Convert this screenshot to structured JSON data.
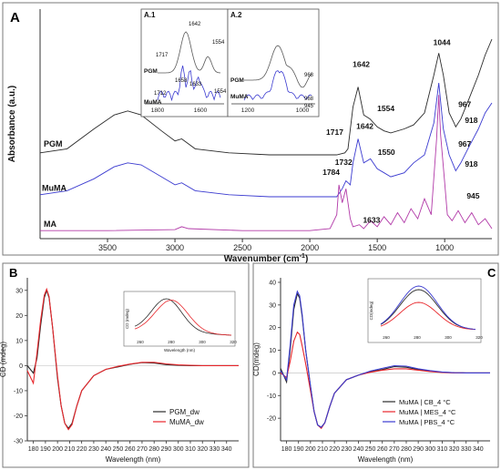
{
  "colors": {
    "black": "#2b2b2b",
    "blue": "#3b3bd0",
    "red": "#e8262b",
    "magenta": "#b23aa8",
    "grey": "#5a5a5a",
    "panel_bg": "#f2f2f2",
    "frame": "#7a7a7a"
  },
  "chart_data": [
    {
      "panel": "A",
      "type": "line",
      "xlabel": "Wavenumber (cm",
      "xlabel_sup": "-1",
      "xlabel_close": ")",
      "ylabel": "Absorbance (a.u.)",
      "xlim": [
        4000,
        650
      ],
      "x_reversed": true,
      "xticks": [
        3500,
        3000,
        2500,
        2000,
        1500,
        1000
      ],
      "series": [
        {
          "name": "PGM",
          "color": "#2b2b2b",
          "x": [
            4000,
            3800,
            3600,
            3450,
            3350,
            3250,
            3100,
            3000,
            2950,
            2850,
            2600,
            2300,
            2000,
            1800,
            1740,
            1717,
            1680,
            1642,
            1600,
            1554,
            1500,
            1450,
            1400,
            1300,
            1230,
            1150,
            1080,
            1044,
            1010,
            967,
            930,
            918,
            880,
            820,
            750,
            700,
            650
          ],
          "y": [
            0.43,
            0.45,
            0.55,
            0.62,
            0.64,
            0.62,
            0.54,
            0.49,
            0.5,
            0.45,
            0.43,
            0.42,
            0.42,
            0.42,
            0.43,
            0.45,
            0.66,
            0.76,
            0.62,
            0.6,
            0.56,
            0.54,
            0.53,
            0.55,
            0.57,
            0.63,
            0.82,
            0.93,
            0.82,
            0.63,
            0.58,
            0.56,
            0.6,
            0.7,
            0.82,
            0.92,
            1.0
          ]
        },
        {
          "name": "MuMA",
          "color": "#3b3bd0",
          "x": [
            4000,
            3800,
            3600,
            3450,
            3350,
            3250,
            3100,
            3000,
            2950,
            2850,
            2600,
            2300,
            2000,
            1800,
            1760,
            1732,
            1700,
            1680,
            1642,
            1600,
            1550,
            1500,
            1450,
            1400,
            1300,
            1230,
            1150,
            1080,
            1044,
            1010,
            967,
            930,
            918,
            880,
            820,
            750,
            700,
            650
          ],
          "y": [
            0.22,
            0.24,
            0.3,
            0.36,
            0.38,
            0.37,
            0.31,
            0.27,
            0.28,
            0.24,
            0.22,
            0.21,
            0.21,
            0.21,
            0.25,
            0.29,
            0.27,
            0.38,
            0.5,
            0.38,
            0.4,
            0.35,
            0.33,
            0.31,
            0.33,
            0.38,
            0.42,
            0.58,
            0.78,
            0.55,
            0.42,
            0.36,
            0.34,
            0.38,
            0.46,
            0.55,
            0.63,
            0.68
          ]
        },
        {
          "name": "MA",
          "color": "#b23aa8",
          "x": [
            4000,
            3500,
            3000,
            2950,
            2900,
            2500,
            2000,
            1850,
            1800,
            1784,
            1760,
            1732,
            1700,
            1680,
            1633,
            1600,
            1550,
            1500,
            1450,
            1400,
            1350,
            1300,
            1250,
            1200,
            1150,
            1100,
            1060,
            1044,
            1030,
            1000,
            980,
            945,
            900,
            850,
            800,
            750,
            700,
            650
          ],
          "y": [
            0.04,
            0.04,
            0.045,
            0.06,
            0.05,
            0.04,
            0.04,
            0.05,
            0.12,
            0.27,
            0.18,
            0.25,
            0.1,
            0.06,
            0.07,
            0.05,
            0.09,
            0.06,
            0.11,
            0.07,
            0.13,
            0.08,
            0.15,
            0.1,
            0.2,
            0.12,
            0.5,
            0.72,
            0.52,
            0.28,
            0.12,
            0.09,
            0.14,
            0.08,
            0.13,
            0.07,
            0.1,
            0.05
          ]
        }
      ],
      "annotations": [
        "1642",
        "1554",
        "1044",
        "967",
        "918",
        "1717",
        "1642",
        "1550",
        "967",
        "918",
        "1784",
        "1732",
        "1633",
        "945"
      ],
      "insets": [
        {
          "title": "A.1",
          "labels": [
            "1642",
            "1554",
            "1717",
            "1658",
            "1633",
            "1712",
            "1554"
          ],
          "series_labels": [
            "PGM",
            "MuMA"
          ],
          "xticks": [
            "1800",
            "1600"
          ]
        },
        {
          "title": "A.2",
          "labels": [
            "968",
            "968",
            "945"
          ],
          "series_labels": [
            "PGM",
            "MuMA"
          ],
          "xticks": [
            "1200",
            "1000"
          ]
        }
      ]
    },
    {
      "panel": "B",
      "type": "line",
      "xlabel": "Wavelength (nm)",
      "ylabel": "CD (mdeg)",
      "xlim": [
        175,
        350
      ],
      "ylim": [
        -30,
        35
      ],
      "xticks": [
        180,
        190,
        200,
        210,
        220,
        230,
        240,
        250,
        260,
        270,
        280,
        290,
        300,
        310,
        320,
        330,
        340
      ],
      "yticks": [
        -30,
        -20,
        -10,
        0,
        10,
        20,
        30
      ],
      "series": [
        {
          "name": "PGM_dw",
          "color": "#2b2b2b",
          "x": [
            175,
            180,
            183,
            186,
            189,
            191,
            193,
            196,
            200,
            203,
            206,
            209,
            212,
            216,
            220,
            230,
            240,
            250,
            260,
            270,
            280,
            290,
            300,
            310,
            320,
            330,
            340,
            350
          ],
          "y": [
            0,
            -3,
            3,
            16,
            27,
            30,
            27,
            15,
            -5,
            -16,
            -23,
            -25,
            -23,
            -16,
            -10,
            -4,
            -1.5,
            -0.5,
            0.5,
            1.2,
            1.0,
            0.4,
            0.1,
            0,
            0,
            0,
            0,
            0
          ]
        },
        {
          "name": "MuMA_dw",
          "color": "#e8262b",
          "x": [
            175,
            180,
            183,
            186,
            189,
            191,
            193,
            196,
            200,
            203,
            206,
            209,
            212,
            216,
            220,
            230,
            240,
            250,
            260,
            270,
            280,
            290,
            300,
            310,
            320,
            330,
            340,
            350
          ],
          "y": [
            -2,
            -7,
            5,
            18,
            28,
            30.5,
            27.5,
            15,
            -4,
            -16,
            -23,
            -25.5,
            -23.5,
            -16,
            -10,
            -4,
            -1.5,
            -0.3,
            0.6,
            1.3,
            1.3,
            0.7,
            0.3,
            0.1,
            0,
            0,
            0,
            0
          ]
        }
      ],
      "inset": {
        "xlabel": "Wavelength (nm)",
        "ylabel": "CD (mdeg)",
        "xticks": [
          "260",
          "280",
          "300",
          "320"
        ]
      }
    },
    {
      "panel": "C",
      "type": "line",
      "xlabel": "Wavelength (nm)",
      "ylabel": "CD(mdeg)",
      "xlim": [
        175,
        350
      ],
      "ylim": [
        -30,
        42
      ],
      "xticks": [
        180,
        190,
        200,
        210,
        220,
        230,
        240,
        250,
        260,
        270,
        280,
        290,
        300,
        310,
        320,
        330,
        340
      ],
      "yticks": [
        -20,
        -10,
        0,
        10,
        20,
        30,
        40
      ],
      "series": [
        {
          "name": "MuMA | CB_4 °C",
          "color": "#2b2b2b",
          "x": [
            175,
            180,
            183,
            186,
            189,
            191,
            193,
            196,
            200,
            203,
            206,
            209,
            212,
            216,
            220,
            230,
            240,
            250,
            260,
            270,
            280,
            290,
            300,
            310,
            320,
            330,
            340,
            350
          ],
          "y": [
            2,
            -4,
            10,
            28,
            35,
            33,
            25,
            10,
            -6,
            -17,
            -23,
            -24,
            -22,
            -15,
            -9,
            -3,
            -1,
            0.5,
            1.5,
            2.8,
            2.5,
            1.5,
            0.8,
            0.3,
            0.1,
            0,
            0,
            0
          ]
        },
        {
          "name": "MuMA | MES_4 °C",
          "color": "#e8262b",
          "x": [
            175,
            180,
            183,
            186,
            189,
            191,
            193,
            196,
            200,
            203,
            206,
            209,
            212,
            216,
            220,
            230,
            240,
            250,
            260,
            270,
            280,
            290,
            300,
            310,
            320,
            330,
            340,
            350
          ],
          "y": [
            0,
            -2,
            5,
            14,
            18,
            17,
            12,
            4,
            -8,
            -17,
            -23,
            -24.5,
            -22,
            -15,
            -9,
            -3,
            -1,
            0.3,
            1.2,
            1.8,
            1.8,
            1.2,
            0.6,
            0.2,
            0,
            0,
            0,
            0
          ]
        },
        {
          "name": "MuMA | PBS_4 °C",
          "color": "#3b3bd0",
          "x": [
            175,
            180,
            183,
            186,
            189,
            191,
            193,
            196,
            200,
            203,
            206,
            209,
            212,
            216,
            220,
            230,
            240,
            250,
            260,
            270,
            280,
            290,
            300,
            310,
            320,
            330,
            340,
            350
          ],
          "y": [
            1,
            -3,
            12,
            30,
            36,
            34,
            26,
            10,
            -6,
            -17,
            -23,
            -24,
            -22,
            -15,
            -9,
            -3,
            -1,
            0.8,
            2.0,
            3.2,
            3.0,
            1.8,
            1.0,
            0.4,
            0.1,
            0,
            0,
            0
          ]
        }
      ],
      "inset": {
        "ylabel": "CD(mdeg)",
        "xticks": [
          "260",
          "280",
          "300",
          "320"
        ]
      }
    }
  ],
  "panels": {
    "a_label": "A",
    "b_label": "B",
    "c_label": "C"
  }
}
